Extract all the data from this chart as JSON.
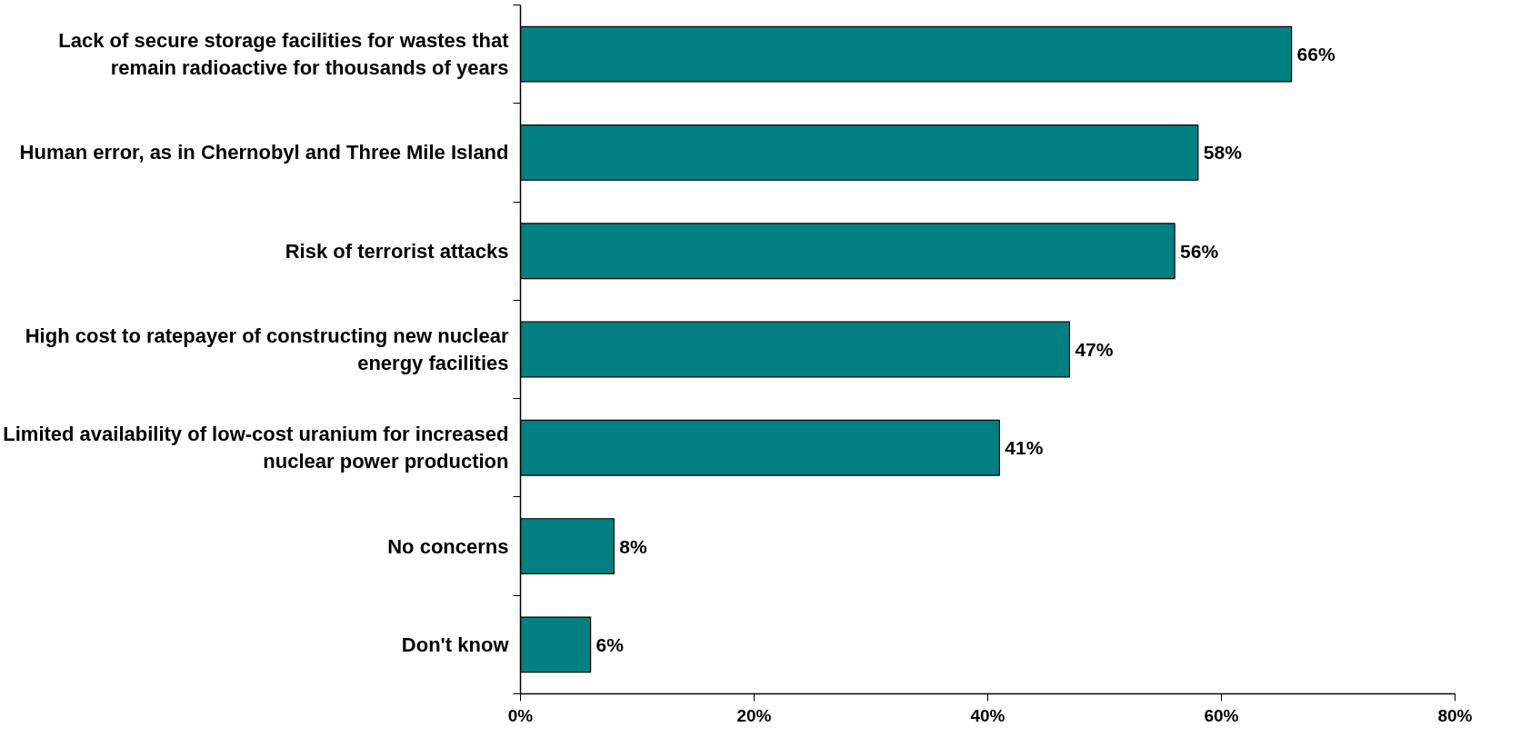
{
  "chart_data": {
    "type": "bar",
    "orientation": "horizontal",
    "categories": [
      "Lack of secure storage facilities for wastes that remain radioactive for thousands of years",
      "Human error, as in Chernobyl and Three Mile Island",
      "Risk of terrorist attacks",
      "High cost to ratepayer of constructing new nuclear energy facilities",
      "Limited availability of low-cost uranium for increased nuclear power production",
      "No concerns",
      "Don't know"
    ],
    "values": [
      66,
      58,
      56,
      47,
      41,
      8,
      6
    ],
    "value_labels": [
      "66%",
      "58%",
      "56%",
      "47%",
      "41%",
      "8%",
      "6%"
    ],
    "color": "#008080",
    "xlim": [
      0,
      80
    ],
    "xticks": [
      {
        "value": 0,
        "label": "0%"
      },
      {
        "value": 20,
        "label": "20%"
      },
      {
        "value": 40,
        "label": "40%"
      },
      {
        "value": 60,
        "label": "60%"
      },
      {
        "value": 80,
        "label": "80%"
      }
    ],
    "grid": false
  }
}
